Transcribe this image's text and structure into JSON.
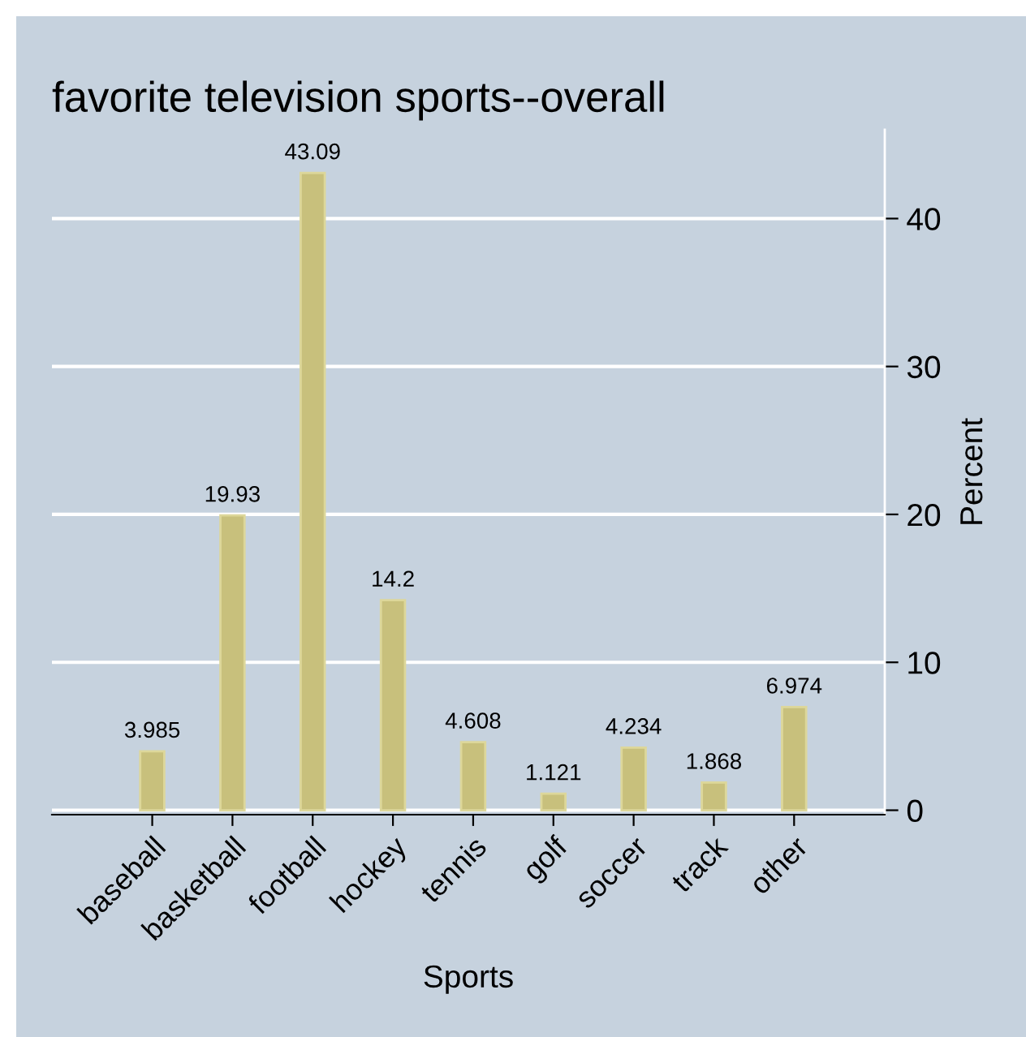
{
  "chart_data": {
    "type": "bar",
    "title": "favorite television sports--overall",
    "xlabel": "Sports",
    "ylabel": "Percent",
    "categories": [
      "baseball",
      "basketball",
      "football",
      "hockey",
      "tennis",
      "golf",
      "soccer",
      "track",
      "other"
    ],
    "values": [
      3.985,
      19.93,
      43.09,
      14.2,
      4.608,
      1.121,
      4.234,
      1.868,
      6.974
    ],
    "color": "#c8c07c",
    "data_labels": true,
    "ylim": [
      -0.3,
      46
    ],
    "yticks": [
      0,
      10,
      20,
      30,
      40
    ],
    "grid": "y",
    "legend": false
  }
}
